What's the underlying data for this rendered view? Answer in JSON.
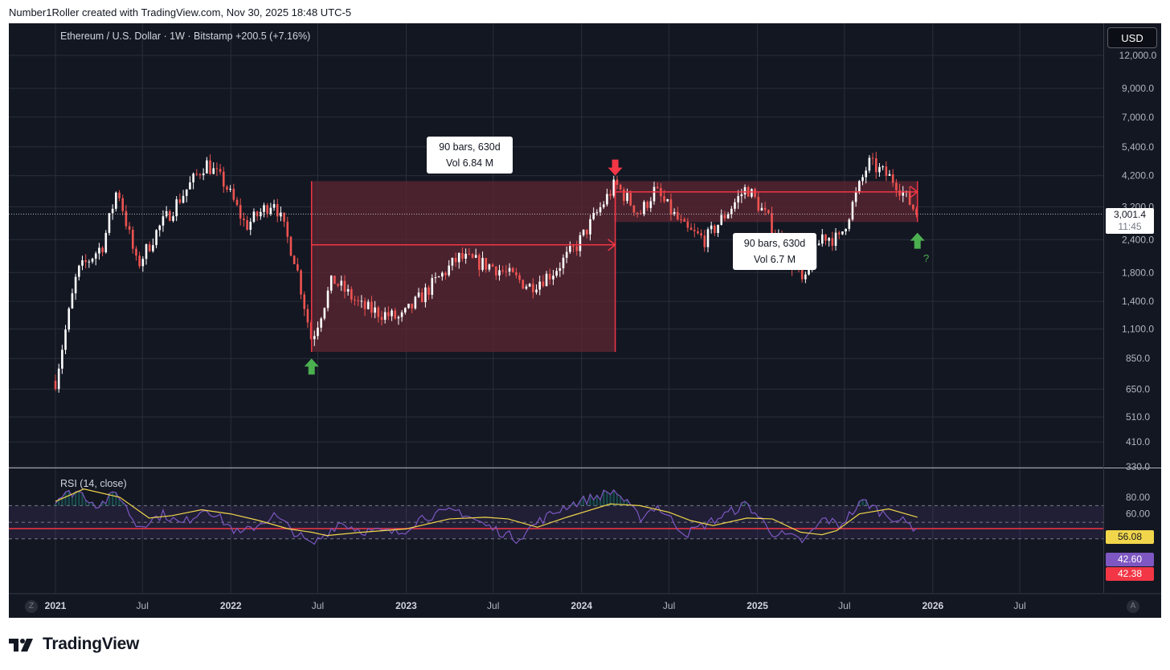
{
  "header": {
    "created_by": "Number1Roller created with TradingView.com, Nov 30, 2025 18:48 UTC-5"
  },
  "symbol_line": "Ethereum / U.S. Dollar · 1W · Bitstamp  +200.5 (+7.16%)",
  "currency_button": "USD",
  "rsi_title": "RSI (14, close)",
  "callouts": [
    {
      "line1": "90 bars, 630d",
      "line2": "Vol 6.84 M"
    },
    {
      "line1": "90 bars, 630d",
      "line2": "Vol 6.7 M"
    }
  ],
  "question_mark": "?",
  "price_tag": {
    "price": "3,001.4",
    "countdown": "11:45"
  },
  "rsi_tags": {
    "ma": "56.08",
    "rsi": "42.60",
    "level": "42.38"
  },
  "corner_buttons": {
    "left": "Z",
    "right": "A"
  },
  "brand": "TradingView",
  "colors": {
    "background": "#131722",
    "up": "#ffffff",
    "down": "#ef5350",
    "box": "#5d2733",
    "arrow_up": "#4caf50",
    "rsi_line": "#7e57c2",
    "rsi_ma": "#f1d64b"
  },
  "chart_data": {
    "type": "candlestick",
    "scale": "log",
    "interval": "1W",
    "x_ticks": [
      "2021",
      "Jul",
      "2022",
      "Jul",
      "2023",
      "Jul",
      "2024",
      "Jul",
      "2025",
      "Jul",
      "2026",
      "Jul"
    ],
    "y_ticks": [
      "12,000.0",
      "9,000.0",
      "7,000.0",
      "5,400.0",
      "4,200.0",
      "3,200.0",
      "2,400.0",
      "1,800.0",
      "1,400.0",
      "1,100.0",
      "850.0",
      "650.0",
      "510.0",
      "410.0",
      "330.0"
    ],
    "price_path": [
      [
        "2021-01-01",
        700
      ],
      [
        "2021-02-15",
        1800
      ],
      [
        "2021-04-10",
        2300
      ],
      [
        "2021-05-10",
        3800
      ],
      [
        "2021-06-20",
        1900
      ],
      [
        "2021-08-01",
        2600
      ],
      [
        "2021-09-15",
        3400
      ],
      [
        "2021-11-10",
        4700
      ],
      [
        "2021-12-20",
        3900
      ],
      [
        "2022-02-01",
        2700
      ],
      [
        "2022-04-01",
        3400
      ],
      [
        "2022-05-15",
        2000
      ],
      [
        "2022-06-18",
        1000
      ],
      [
        "2022-08-01",
        1700
      ],
      [
        "2022-10-01",
        1330
      ],
      [
        "2022-12-20",
        1200
      ],
      [
        "2023-03-01",
        1650
      ],
      [
        "2023-04-20",
        2050
      ],
      [
        "2023-07-01",
        1900
      ],
      [
        "2023-09-15",
        1600
      ],
      [
        "2023-11-01",
        1800
      ],
      [
        "2023-12-20",
        2250
      ],
      [
        "2024-03-11",
        3900
      ],
      [
        "2024-05-01",
        3000
      ],
      [
        "2024-06-01",
        3700
      ],
      [
        "2024-08-05",
        2600
      ],
      [
        "2024-09-15",
        2400
      ],
      [
        "2024-12-10",
        3800
      ],
      [
        "2025-02-01",
        2700
      ],
      [
        "2025-04-08",
        1600
      ],
      [
        "2025-05-15",
        2500
      ],
      [
        "2025-06-20",
        2400
      ],
      [
        "2025-08-20",
        4700
      ],
      [
        "2025-10-15",
        4000
      ],
      [
        "2025-11-30",
        3001.4
      ]
    ],
    "ranges": [
      {
        "from": "2022-06-18",
        "to": "2024-03-11",
        "low": 900,
        "high": 4000,
        "label": "90 bars, 630d",
        "volume": "Vol 6.84 M"
      },
      {
        "from": "2024-03-11",
        "to": "2025-11-30",
        "low": 2800,
        "high": 4000,
        "label": "90 bars, 630d",
        "volume": "Vol 6.7 M"
      }
    ],
    "markers": [
      {
        "date": "2022-06-18",
        "type": "arrow-up",
        "price": 850
      },
      {
        "date": "2024-03-11",
        "type": "arrow-down",
        "price": 4200
      },
      {
        "date": "2025-11-30",
        "type": "arrow-up",
        "price": 2550,
        "note": "?"
      }
    ],
    "last_price": 3001.4,
    "rsi": {
      "period": 14,
      "y_ticks": [
        "80.00",
        "60.00"
      ],
      "upper_band": 70,
      "lower_band": 30,
      "red_level": 42.38,
      "rsi_path": [
        [
          "2021-01-01",
          78
        ],
        [
          "2021-02-15",
          88
        ],
        [
          "2021-04-01",
          70
        ],
        [
          "2021-05-10",
          86
        ],
        [
          "2021-06-20",
          45
        ],
        [
          "2021-08-15",
          60
        ],
        [
          "2021-09-20",
          47
        ],
        [
          "2021-11-10",
          68
        ],
        [
          "2022-01-20",
          35
        ],
        [
          "2022-04-01",
          58
        ],
        [
          "2022-06-18",
          22
        ],
        [
          "2022-08-15",
          50
        ],
        [
          "2022-10-01",
          40
        ],
        [
          "2022-12-20",
          37
        ],
        [
          "2023-02-01",
          56
        ],
        [
          "2023-04-20",
          64
        ],
        [
          "2023-06-15",
          46
        ],
        [
          "2023-08-20",
          30
        ],
        [
          "2023-10-01",
          50
        ],
        [
          "2023-12-01",
          70
        ],
        [
          "2024-03-11",
          88
        ],
        [
          "2024-05-01",
          55
        ],
        [
          "2024-06-05",
          70
        ],
        [
          "2024-08-05",
          36
        ],
        [
          "2024-10-01",
          52
        ],
        [
          "2024-12-10",
          72
        ],
        [
          "2025-02-01",
          38
        ],
        [
          "2025-04-08",
          27
        ],
        [
          "2025-05-20",
          55
        ],
        [
          "2025-06-20",
          46
        ],
        [
          "2025-08-10",
          76
        ],
        [
          "2025-09-15",
          62
        ],
        [
          "2025-10-15",
          55
        ],
        [
          "2025-11-30",
          42.6
        ]
      ],
      "ma_path": [
        [
          "2021-01-01",
          75
        ],
        [
          "2021-03-01",
          90
        ],
        [
          "2021-05-15",
          80
        ],
        [
          "2021-07-15",
          55
        ],
        [
          "2021-09-01",
          58
        ],
        [
          "2021-11-01",
          65
        ],
        [
          "2022-01-01",
          60
        ],
        [
          "2022-03-01",
          52
        ],
        [
          "2022-05-01",
          42
        ],
        [
          "2022-06-18",
          38
        ],
        [
          "2022-07-20",
          34
        ],
        [
          "2022-10-01",
          38
        ],
        [
          "2023-01-01",
          42
        ],
        [
          "2023-04-01",
          54
        ],
        [
          "2023-06-15",
          56
        ],
        [
          "2023-08-01",
          54
        ],
        [
          "2023-10-01",
          44
        ],
        [
          "2023-12-01",
          56
        ],
        [
          "2024-03-01",
          72
        ],
        [
          "2024-05-01",
          70
        ],
        [
          "2024-07-01",
          62
        ],
        [
          "2024-08-15",
          52
        ],
        [
          "2024-10-01",
          46
        ],
        [
          "2024-12-10",
          55
        ],
        [
          "2025-02-01",
          54
        ],
        [
          "2025-04-01",
          38
        ],
        [
          "2025-05-15",
          35
        ],
        [
          "2025-06-15",
          40
        ],
        [
          "2025-08-01",
          60
        ],
        [
          "2025-10-01",
          66
        ],
        [
          "2025-11-30",
          56.08
        ]
      ],
      "last_rsi": 42.6,
      "last_ma": 56.08
    }
  }
}
